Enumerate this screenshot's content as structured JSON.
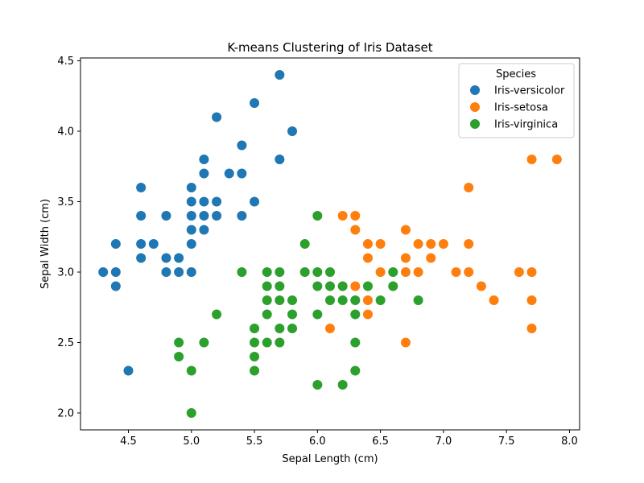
{
  "chart_data": {
    "type": "scatter",
    "title": "K-means Clustering of Iris Dataset",
    "xlabel": "Sepal Length (cm)",
    "ylabel": "Sepal Width (cm)",
    "xlim": [
      4.12,
      8.08
    ],
    "ylim": [
      1.88,
      4.52
    ],
    "xticks": [
      4.5,
      5.0,
      5.5,
      6.0,
      6.5,
      7.0,
      7.5,
      8.0
    ],
    "yticks": [
      2.0,
      2.5,
      3.0,
      3.5,
      4.0,
      4.5
    ],
    "xtick_labels": [
      "4.5",
      "5.0",
      "5.5",
      "6.0",
      "6.5",
      "7.0",
      "7.5",
      "8.0"
    ],
    "ytick_labels": [
      "2.0",
      "2.5",
      "3.0",
      "3.5",
      "4.0",
      "4.5"
    ],
    "grid": false,
    "legend": {
      "title": "Species",
      "placement": "top-right"
    },
    "series": [
      {
        "name": "Iris-versicolor",
        "color": "#1f77b4",
        "points": [
          [
            4.3,
            3.0
          ],
          [
            4.4,
            3.2
          ],
          [
            4.4,
            3.0
          ],
          [
            4.4,
            2.9
          ],
          [
            4.5,
            2.3
          ],
          [
            4.6,
            3.6
          ],
          [
            4.6,
            3.4
          ],
          [
            4.6,
            3.2
          ],
          [
            4.6,
            3.1
          ],
          [
            4.7,
            3.2
          ],
          [
            4.8,
            3.4
          ],
          [
            4.8,
            3.1
          ],
          [
            4.8,
            3.0
          ],
          [
            4.9,
            3.1
          ],
          [
            4.9,
            3.0
          ],
          [
            5.0,
            3.6
          ],
          [
            5.0,
            3.5
          ],
          [
            5.0,
            3.4
          ],
          [
            5.0,
            3.3
          ],
          [
            5.0,
            3.2
          ],
          [
            5.0,
            3.0
          ],
          [
            5.1,
            3.8
          ],
          [
            5.1,
            3.7
          ],
          [
            5.1,
            3.5
          ],
          [
            5.1,
            3.4
          ],
          [
            5.1,
            3.3
          ],
          [
            5.2,
            4.1
          ],
          [
            5.2,
            3.5
          ],
          [
            5.2,
            3.4
          ],
          [
            5.3,
            3.7
          ],
          [
            5.4,
            3.9
          ],
          [
            5.4,
            3.7
          ],
          [
            5.4,
            3.4
          ],
          [
            5.5,
            4.2
          ],
          [
            5.5,
            3.5
          ],
          [
            5.7,
            4.4
          ],
          [
            5.7,
            3.8
          ],
          [
            5.8,
            4.0
          ]
        ]
      },
      {
        "name": "Iris-setosa",
        "color": "#ff7f0e",
        "points": [
          [
            6.1,
            2.6
          ],
          [
            6.2,
            3.4
          ],
          [
            6.3,
            3.4
          ],
          [
            6.3,
            3.3
          ],
          [
            6.3,
            2.9
          ],
          [
            6.4,
            3.2
          ],
          [
            6.4,
            3.1
          ],
          [
            6.4,
            2.8
          ],
          [
            6.4,
            2.7
          ],
          [
            6.5,
            3.2
          ],
          [
            6.5,
            3.0
          ],
          [
            6.7,
            3.3
          ],
          [
            6.7,
            3.1
          ],
          [
            6.7,
            3.0
          ],
          [
            6.7,
            2.5
          ],
          [
            6.8,
            3.2
          ],
          [
            6.8,
            3.0
          ],
          [
            6.9,
            3.2
          ],
          [
            6.9,
            3.1
          ],
          [
            7.0,
            3.2
          ],
          [
            7.1,
            3.0
          ],
          [
            7.2,
            3.6
          ],
          [
            7.2,
            3.2
          ],
          [
            7.2,
            3.0
          ],
          [
            7.3,
            2.9
          ],
          [
            7.4,
            2.8
          ],
          [
            7.6,
            3.0
          ],
          [
            7.7,
            3.8
          ],
          [
            7.7,
            3.0
          ],
          [
            7.7,
            2.8
          ],
          [
            7.7,
            2.6
          ],
          [
            7.9,
            3.8
          ]
        ]
      },
      {
        "name": "Iris-virginica",
        "color": "#2ca02c",
        "points": [
          [
            4.9,
            2.5
          ],
          [
            4.9,
            2.4
          ],
          [
            5.0,
            2.3
          ],
          [
            5.0,
            2.0
          ],
          [
            5.1,
            2.5
          ],
          [
            5.2,
            2.7
          ],
          [
            5.4,
            3.0
          ],
          [
            5.5,
            2.6
          ],
          [
            5.5,
            2.5
          ],
          [
            5.5,
            2.4
          ],
          [
            5.5,
            2.3
          ],
          [
            5.6,
            3.0
          ],
          [
            5.6,
            2.9
          ],
          [
            5.6,
            2.8
          ],
          [
            5.6,
            2.7
          ],
          [
            5.6,
            2.5
          ],
          [
            5.7,
            3.0
          ],
          [
            5.7,
            2.9
          ],
          [
            5.7,
            2.8
          ],
          [
            5.7,
            2.6
          ],
          [
            5.7,
            2.5
          ],
          [
            5.8,
            2.8
          ],
          [
            5.8,
            2.7
          ],
          [
            5.8,
            2.6
          ],
          [
            5.9,
            3.2
          ],
          [
            5.9,
            3.0
          ],
          [
            6.0,
            3.4
          ],
          [
            6.0,
            3.0
          ],
          [
            6.0,
            2.9
          ],
          [
            6.0,
            2.7
          ],
          [
            6.0,
            2.2
          ],
          [
            6.1,
            3.0
          ],
          [
            6.1,
            2.9
          ],
          [
            6.1,
            2.8
          ],
          [
            6.2,
            2.9
          ],
          [
            6.2,
            2.8
          ],
          [
            6.2,
            2.2
          ],
          [
            6.3,
            2.8
          ],
          [
            6.3,
            2.7
          ],
          [
            6.3,
            2.5
          ],
          [
            6.3,
            2.3
          ],
          [
            6.4,
            2.9
          ],
          [
            6.5,
            2.8
          ],
          [
            6.6,
            3.0
          ],
          [
            6.6,
            2.9
          ],
          [
            6.8,
            2.8
          ]
        ]
      }
    ]
  }
}
